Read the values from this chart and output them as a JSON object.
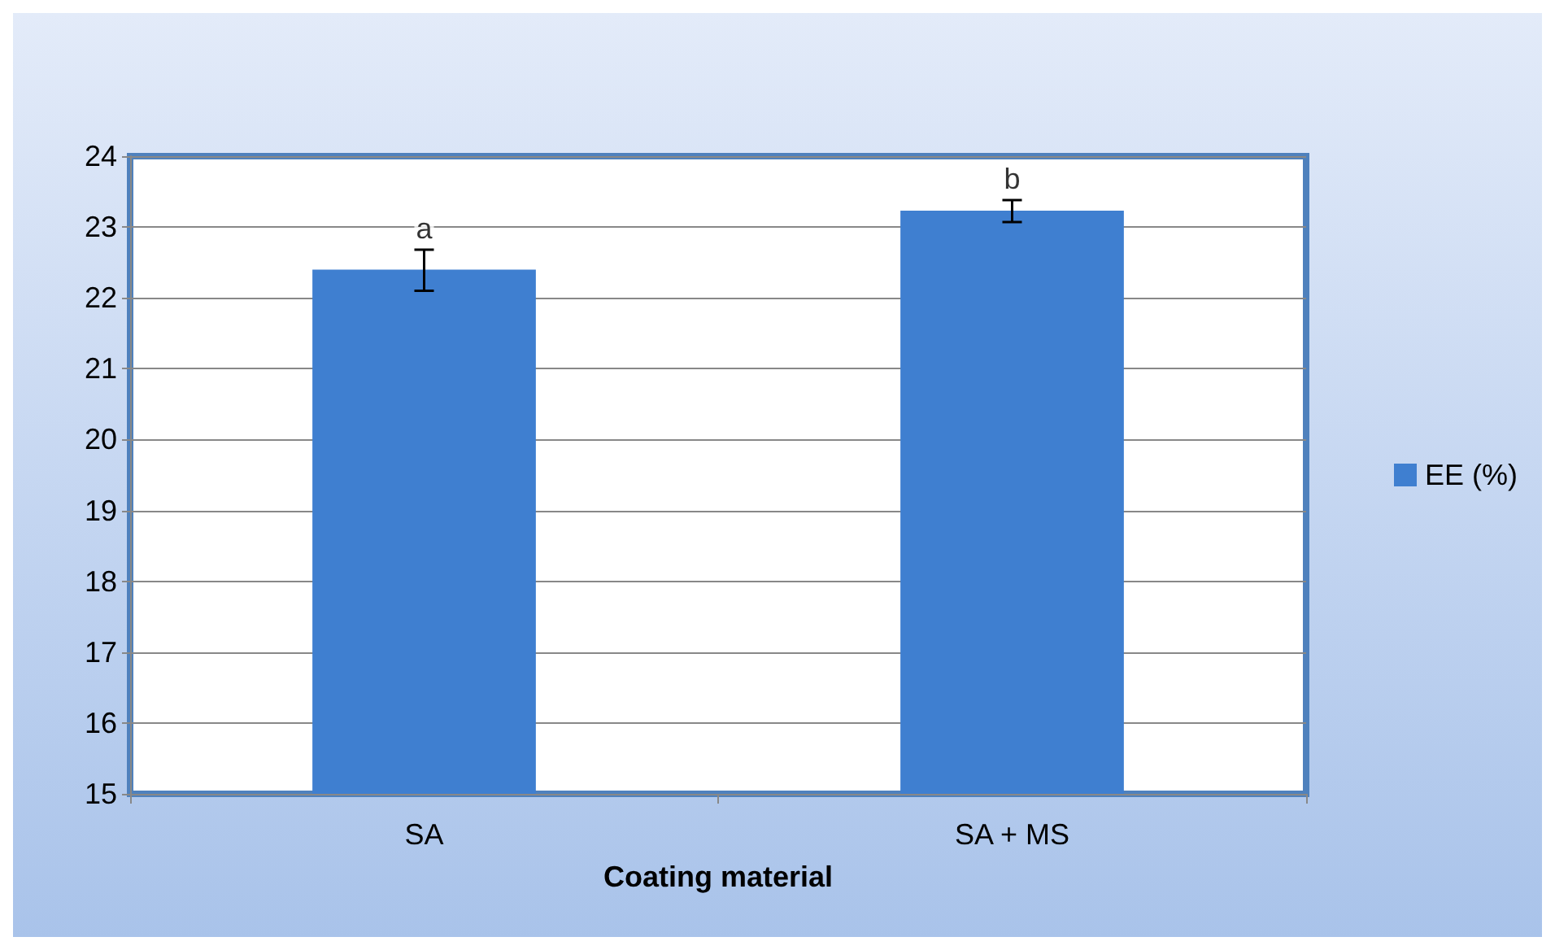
{
  "chart_data": {
    "type": "bar",
    "xlabel": "Coating material",
    "categories": [
      "SA",
      "SA + MS"
    ],
    "series": [
      {
        "name": "EE (%)",
        "color": "#3f7fd0",
        "values": [
          22.4,
          23.23
        ],
        "errors": [
          [
            22.1,
            22.68
          ],
          [
            23.07,
            23.38
          ]
        ]
      }
    ],
    "ylim": [
      15,
      24
    ],
    "yticks": [
      15,
      16,
      17,
      18,
      19,
      20,
      21,
      22,
      23,
      24
    ],
    "grid": "y",
    "legend": "right",
    "annotations": [
      {
        "text": "a",
        "x": "SA",
        "y": 22.68
      },
      {
        "text": "b",
        "x": "SA + MS",
        "y": 23.38
      }
    ]
  }
}
